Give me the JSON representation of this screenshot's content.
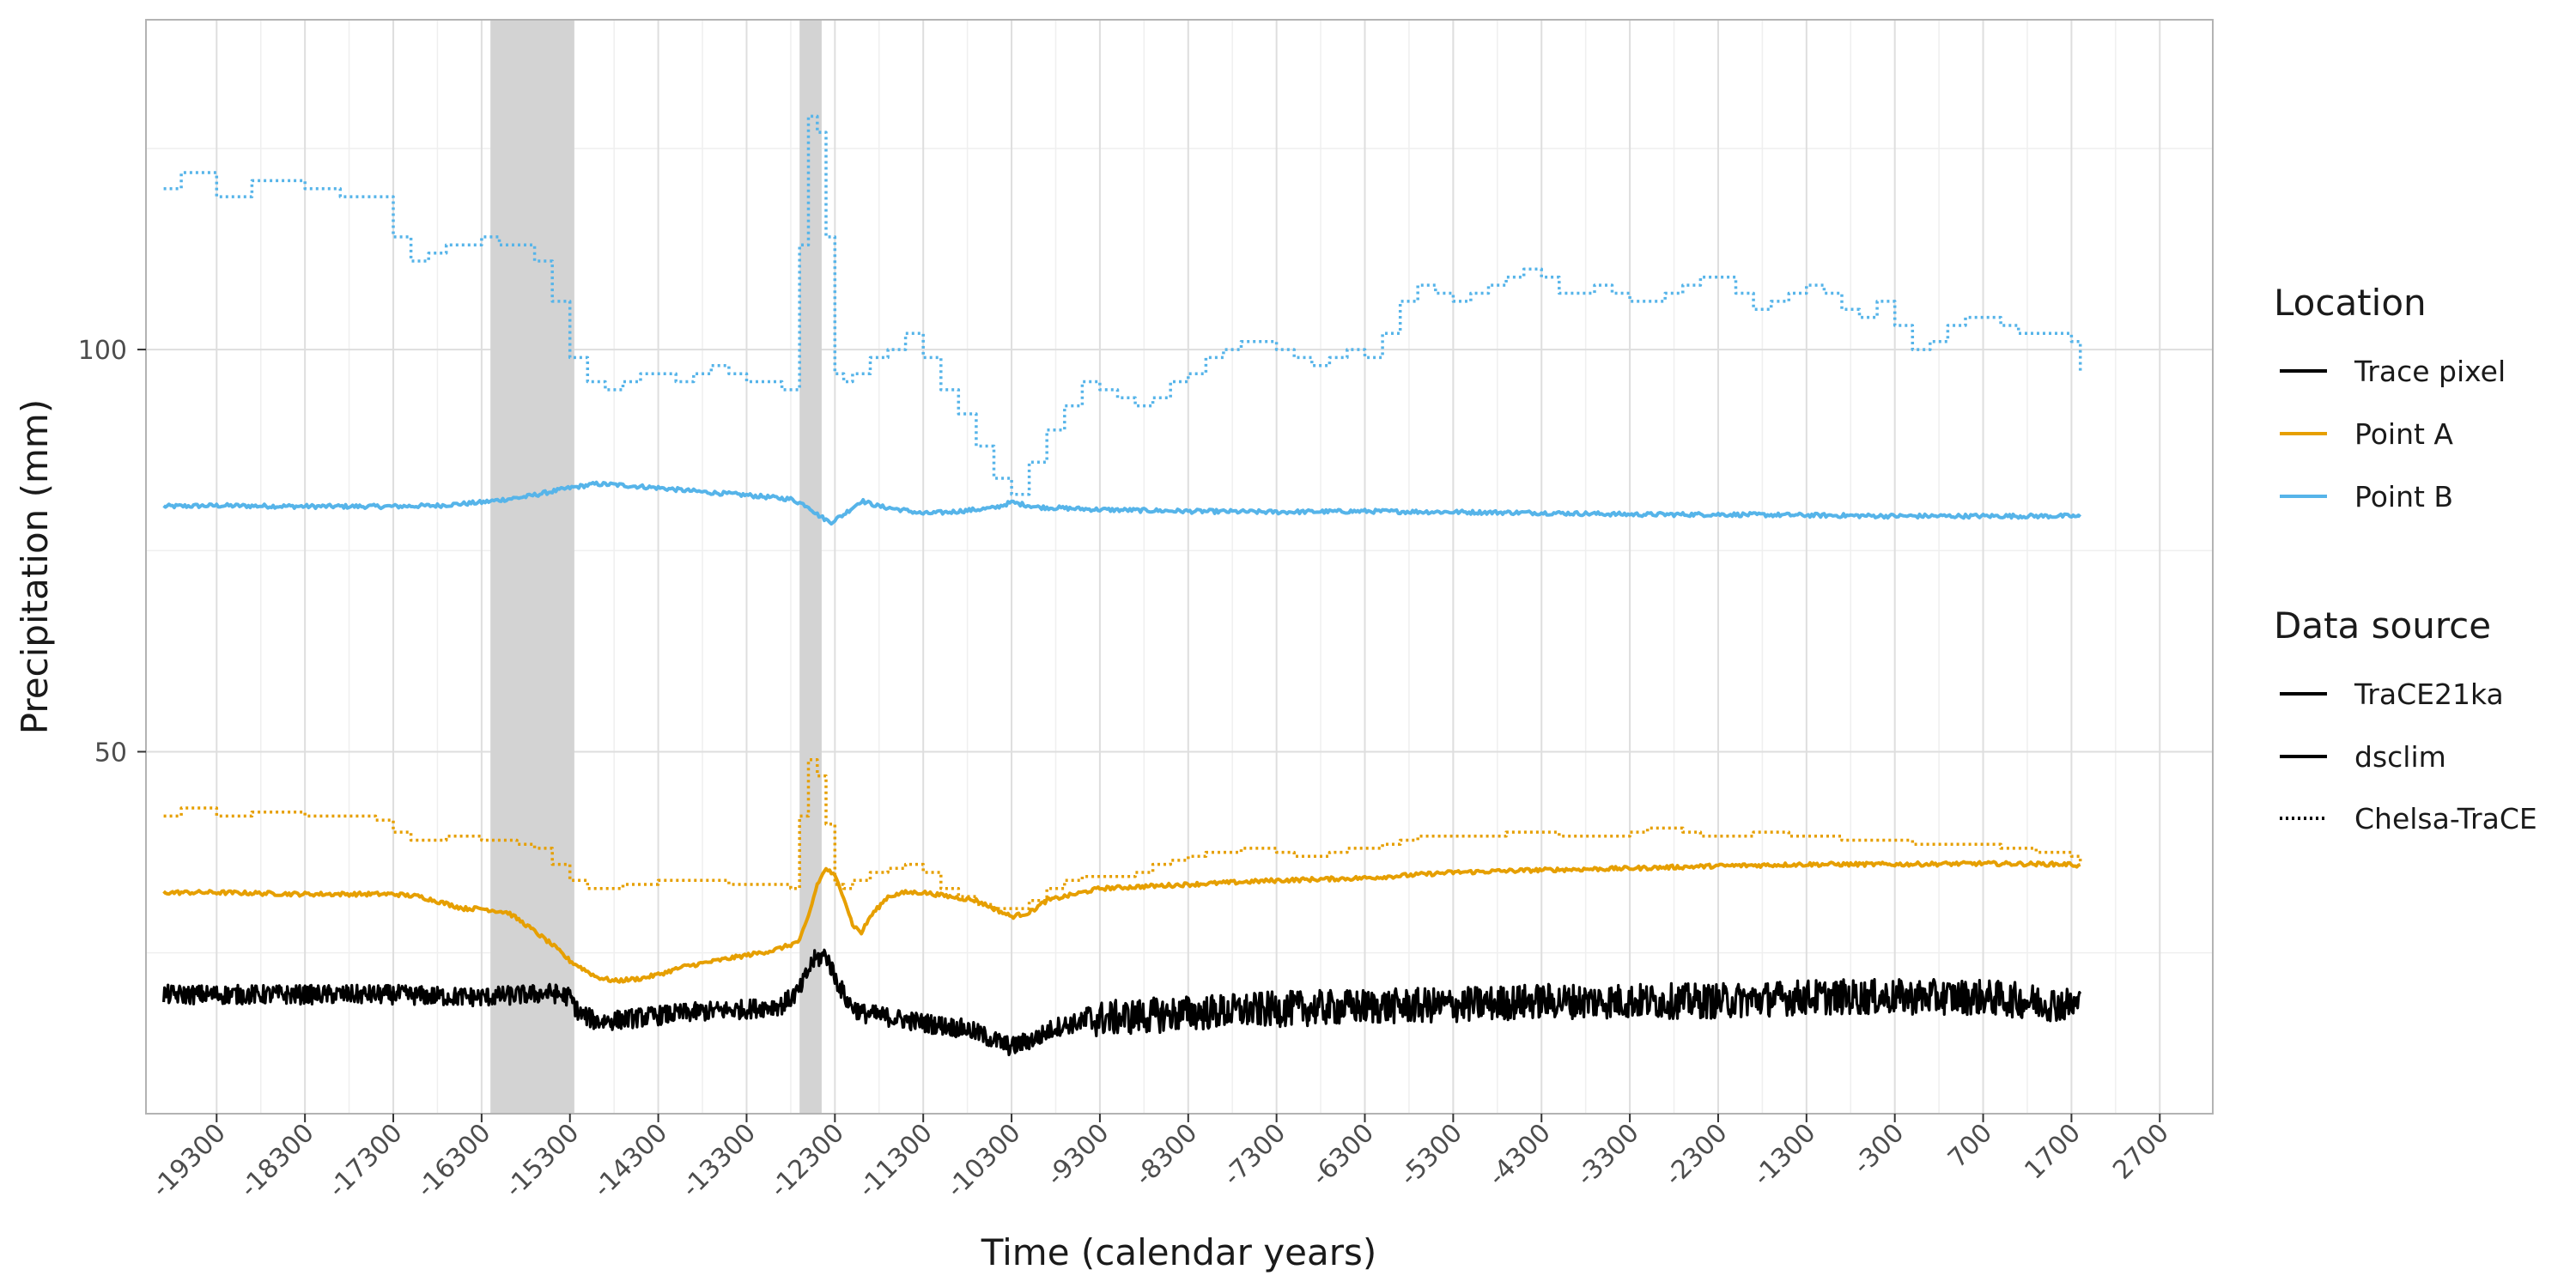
{
  "chart_data": {
    "type": "line",
    "xlabel": "Time (calendar years)",
    "ylabel": "Precipitation (mm)",
    "xlim": [
      -20100,
      3300
    ],
    "ylim": [
      5,
      141
    ],
    "x_ticks": [
      -19300,
      -18300,
      -17300,
      -16300,
      -15300,
      -14300,
      -13300,
      -12300,
      -11300,
      -10300,
      -9300,
      -8300,
      -7300,
      -6300,
      -5300,
      -4300,
      -3300,
      -2300,
      -1300,
      -300,
      700,
      1700,
      2700
    ],
    "x_tick_labels": [
      "-19300",
      "-18300",
      "-17300",
      "-16300",
      "-15300",
      "-14300",
      "-13300",
      "-12300",
      "-11300",
      "-10300",
      "-9300",
      "-8300",
      "-7300",
      "-6300",
      "-5300",
      "-4300",
      "-3300",
      "-2300",
      "-1300",
      "-300",
      "700",
      "1700",
      "2700"
    ],
    "y_ticks": [
      50,
      100
    ],
    "y_tick_labels": [
      "50",
      "100"
    ],
    "grid": true,
    "shaded_periods": [
      [
        -16200,
        -15250
      ],
      [
        -12700,
        -12450
      ]
    ],
    "colors": {
      "Trace pixel": "#000000",
      "Point A": "#E69F00",
      "Point B": "#56B4E9",
      "panel_border": "#b3b3b3",
      "grid_major": "#dedede",
      "grid_minor": "#efefef",
      "shade": "#d3d3d3"
    },
    "legend": {
      "placement": "right",
      "location": {
        "title": "Location",
        "items": [
          {
            "label": "Trace pixel",
            "color": "#000000",
            "linetype": "solid"
          },
          {
            "label": "Point A",
            "color": "#E69F00",
            "linetype": "solid"
          },
          {
            "label": "Point B",
            "color": "#56B4E9",
            "linetype": "solid"
          }
        ]
      },
      "source": {
        "title": "Data source",
        "items": [
          {
            "label": "TraCE21ka",
            "color": "#000000",
            "linetype": "solid"
          },
          {
            "label": "dsclim",
            "color": "#000000",
            "linetype": "solid"
          },
          {
            "label": "Chelsa-TraCE",
            "color": "#000000",
            "linetype": "dotted"
          }
        ]
      }
    },
    "series": [
      {
        "location": "Point B",
        "source": "Chelsa-TraCE",
        "color": "#56B4E9",
        "linetype": "dotted",
        "step": true,
        "x": [
          -19900,
          -19700,
          -19500,
          -19300,
          -19100,
          -18900,
          -18700,
          -18500,
          -18300,
          -18100,
          -17900,
          -17700,
          -17500,
          -17300,
          -17100,
          -16900,
          -16700,
          -16500,
          -16300,
          -16100,
          -15900,
          -15700,
          -15500,
          -15300,
          -15100,
          -14900,
          -14700,
          -14500,
          -14300,
          -14100,
          -13900,
          -13700,
          -13500,
          -13300,
          -13100,
          -12900,
          -12800,
          -12700,
          -12600,
          -12500,
          -12400,
          -12300,
          -12200,
          -12100,
          -11900,
          -11700,
          -11500,
          -11300,
          -11100,
          -10900,
          -10700,
          -10500,
          -10300,
          -10100,
          -9900,
          -9700,
          -9500,
          -9300,
          -9100,
          -8900,
          -8700,
          -8500,
          -8300,
          -8100,
          -7900,
          -7700,
          -7500,
          -7300,
          -7100,
          -6900,
          -6700,
          -6500,
          -6300,
          -6100,
          -5900,
          -5700,
          -5500,
          -5300,
          -5100,
          -4900,
          -4700,
          -4500,
          -4300,
          -4100,
          -3900,
          -3700,
          -3500,
          -3300,
          -3100,
          -2900,
          -2700,
          -2500,
          -2300,
          -2100,
          -1900,
          -1700,
          -1500,
          -1300,
          -1100,
          -900,
          -700,
          -500,
          -300,
          -100,
          100,
          300,
          500,
          700,
          900,
          1100,
          1300,
          1500,
          1700,
          1800
        ],
        "y": [
          120,
          122,
          122,
          119,
          119,
          121,
          121,
          121,
          120,
          120,
          119,
          119,
          119,
          114,
          111,
          112,
          113,
          113,
          114,
          113,
          113,
          111,
          106,
          99,
          96,
          95,
          96,
          97,
          97,
          96,
          97,
          98,
          97,
          96,
          96,
          95,
          95,
          113,
          129,
          127,
          114,
          97,
          96,
          97,
          99,
          100,
          102,
          99,
          95,
          92,
          88,
          84,
          82,
          86,
          90,
          93,
          96,
          95,
          94,
          93,
          94,
          96,
          97,
          99,
          100,
          101,
          101,
          100,
          99,
          98,
          99,
          100,
          99,
          102,
          106,
          108,
          107,
          106,
          107,
          108,
          109,
          110,
          109,
          107,
          107,
          108,
          107,
          106,
          106,
          107,
          108,
          109,
          109,
          107,
          105,
          106,
          107,
          108,
          107,
          105,
          104,
          106,
          103,
          100,
          101,
          103,
          104,
          104,
          103,
          102,
          102,
          102,
          101,
          97
        ]
      },
      {
        "location": "Point B",
        "source": "dsclim",
        "color": "#56B4E9",
        "linetype": "solid",
        "x": [
          -19900,
          -19300,
          -18300,
          -17300,
          -16800,
          -16300,
          -15800,
          -15300,
          -15000,
          -14800,
          -14300,
          -13800,
          -13300,
          -12800,
          -12600,
          -12500,
          -12350,
          -12200,
          -12000,
          -11800,
          -11500,
          -11300,
          -11000,
          -10500,
          -10300,
          -10000,
          -9300,
          -8300,
          -7300,
          -6300,
          -5300,
          -4300,
          -3300,
          -2300,
          -1300,
          -300,
          700,
          1700,
          1800
        ],
        "y": [
          80.5,
          80.6,
          80.5,
          80.5,
          80.6,
          81,
          81.7,
          82.8,
          83.3,
          83.2,
          82.8,
          82.3,
          81.9,
          81.4,
          80.5,
          79.5,
          78.5,
          79.5,
          81.2,
          80.5,
          80,
          79.6,
          79.8,
          80.3,
          81,
          80.4,
          80.1,
          79.9,
          79.8,
          79.9,
          79.8,
          79.7,
          79.5,
          79.5,
          79.4,
          79.3,
          79.3,
          79.3,
          79.2
        ]
      },
      {
        "location": "Point A",
        "source": "Chelsa-TraCE",
        "color": "#E69F00",
        "linetype": "dotted",
        "step": true,
        "x": [
          -19900,
          -19700,
          -19500,
          -19300,
          -19100,
          -18900,
          -18700,
          -18500,
          -18300,
          -18100,
          -17900,
          -17700,
          -17500,
          -17300,
          -17100,
          -16900,
          -16700,
          -16500,
          -16300,
          -16100,
          -15900,
          -15700,
          -15500,
          -15300,
          -15100,
          -14900,
          -14700,
          -14500,
          -14300,
          -14100,
          -13900,
          -13700,
          -13500,
          -13300,
          -13100,
          -12900,
          -12800,
          -12700,
          -12600,
          -12500,
          -12400,
          -12300,
          -12200,
          -12100,
          -11900,
          -11700,
          -11500,
          -11300,
          -11100,
          -10900,
          -10700,
          -10500,
          -10300,
          -10100,
          -9900,
          -9700,
          -9500,
          -9300,
          -9100,
          -8900,
          -8700,
          -8500,
          -8300,
          -8100,
          -7900,
          -7700,
          -7500,
          -7300,
          -7100,
          -6900,
          -6700,
          -6500,
          -6300,
          -6100,
          -5900,
          -5700,
          -5500,
          -5300,
          -5100,
          -4900,
          -4700,
          -4500,
          -4300,
          -4100,
          -3900,
          -3700,
          -3500,
          -3300,
          -3100,
          -2900,
          -2700,
          -2500,
          -2300,
          -2100,
          -1900,
          -1700,
          -1500,
          -1300,
          -1100,
          -900,
          -700,
          -500,
          -300,
          -100,
          100,
          300,
          500,
          700,
          900,
          1100,
          1300,
          1500,
          1700,
          1800
        ],
        "y": [
          42,
          43,
          43,
          42,
          42,
          42.5,
          42.5,
          42.5,
          42,
          42,
          42,
          42,
          41.5,
          40,
          39,
          39,
          39.5,
          39.5,
          39,
          39,
          38.5,
          38,
          36,
          34,
          33,
          33,
          33.5,
          33.5,
          34,
          34,
          34,
          34,
          33.5,
          33.5,
          33.5,
          33.5,
          33,
          42,
          49,
          47,
          41,
          33.5,
          33,
          34,
          35,
          35.5,
          36,
          35,
          33,
          32,
          31,
          30.5,
          30.5,
          31.5,
          33,
          34,
          34.5,
          34.5,
          34.5,
          35,
          36,
          36.5,
          37,
          37.5,
          37.5,
          38,
          38,
          37.5,
          37,
          37,
          37.5,
          38,
          38,
          38.5,
          39,
          39.5,
          39.5,
          39.5,
          39.5,
          39.5,
          40,
          40,
          40,
          39.5,
          39.5,
          39.5,
          39.5,
          40,
          40.5,
          40.5,
          40,
          39.5,
          39.5,
          39.5,
          40,
          40,
          39.5,
          39.5,
          39.5,
          39,
          39,
          39,
          39,
          38.5,
          38.5,
          38.5,
          38.5,
          38.5,
          38,
          38,
          37.5,
          37.5,
          37,
          36
        ]
      },
      {
        "location": "Point A",
        "source": "dsclim",
        "color": "#E69F00",
        "linetype": "solid",
        "x": [
          -19900,
          -19300,
          -18300,
          -17300,
          -17000,
          -16500,
          -16300,
          -16000,
          -15800,
          -15500,
          -15300,
          -15000,
          -14800,
          -14500,
          -14300,
          -14000,
          -13500,
          -13000,
          -12800,
          -12700,
          -12600,
          -12500,
          -12400,
          -12300,
          -12200,
          -12100,
          -12000,
          -11900,
          -11700,
          -11500,
          -11300,
          -11000,
          -10700,
          -10500,
          -10300,
          -10100,
          -9900,
          -9500,
          -9300,
          -8300,
          -7300,
          -6300,
          -5300,
          -4300,
          -3300,
          -2300,
          -1300,
          -300,
          700,
          1700,
          1800
        ],
        "y": [
          32.5,
          32.5,
          32.3,
          32.3,
          32,
          30.5,
          30.5,
          30,
          28.5,
          26,
          24,
          22,
          21.5,
          21.8,
          22.3,
          23.3,
          24.3,
          25.3,
          26,
          26.5,
          29.5,
          33.5,
          35.5,
          34.5,
          32,
          28.5,
          27.5,
          29.5,
          32,
          32.5,
          32.5,
          32,
          31.5,
          30.5,
          29.5,
          30,
          31.5,
          32.5,
          33,
          33.5,
          34,
          34.3,
          35,
          35.3,
          35.5,
          35.8,
          36,
          36,
          36.1,
          36,
          35.8
        ]
      },
      {
        "location": "Trace pixel",
        "source": "TraCE21ka",
        "color": "#000000",
        "linetype": "solid",
        "noisy": true,
        "x": [
          -19900,
          -19300,
          -18300,
          -17300,
          -16800,
          -16300,
          -15800,
          -15500,
          -15300,
          -15200,
          -15000,
          -14800,
          -14300,
          -13800,
          -13300,
          -12900,
          -12700,
          -12550,
          -12400,
          -12300,
          -12150,
          -12000,
          -11800,
          -11300,
          -10800,
          -10300,
          -10000,
          -9800,
          -9300,
          -8300,
          -7300,
          -6300,
          -5300,
          -4300,
          -3300,
          -2300,
          -1300,
          -300,
          700,
          1700,
          1800
        ],
        "y": [
          19.8,
          19.8,
          19.8,
          19.8,
          19.6,
          19.5,
          19.8,
          20,
          19.5,
          17.5,
          16.5,
          16.6,
          17.2,
          17.7,
          18,
          18.5,
          20.3,
          24,
          24.8,
          22,
          18.8,
          17.5,
          17.2,
          16.3,
          15.5,
          13.3,
          14.5,
          15.8,
          16.8,
          17.5,
          18,
          18.3,
          18.5,
          19,
          19,
          19,
          19.5,
          19.5,
          19.5,
          18.5,
          18.5
        ]
      }
    ]
  }
}
